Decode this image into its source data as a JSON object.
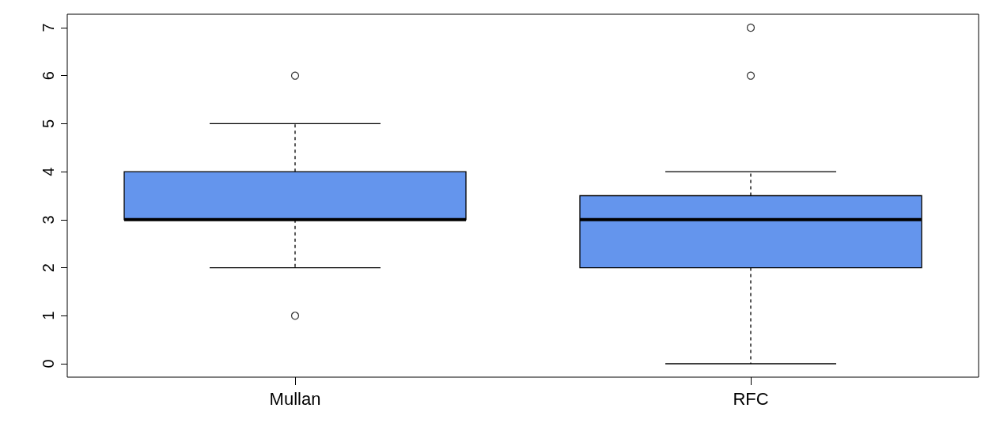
{
  "chart_data": {
    "type": "box",
    "categories": [
      "Mullan",
      "RFC"
    ],
    "color": "#6495ed",
    "boxes": [
      {
        "low": 2,
        "q1": 3,
        "median": 3,
        "q3": 4,
        "high": 5,
        "outliers": [
          6,
          1
        ]
      },
      {
        "low": 0,
        "q1": 2,
        "median": 3,
        "q3": 3.5,
        "high": 4,
        "outliers": [
          7,
          6
        ]
      }
    ],
    "ylim": [
      -0.28,
      7.28
    ],
    "yticks": [
      0,
      1,
      2,
      3,
      4,
      5,
      6,
      7
    ],
    "grid": false
  }
}
